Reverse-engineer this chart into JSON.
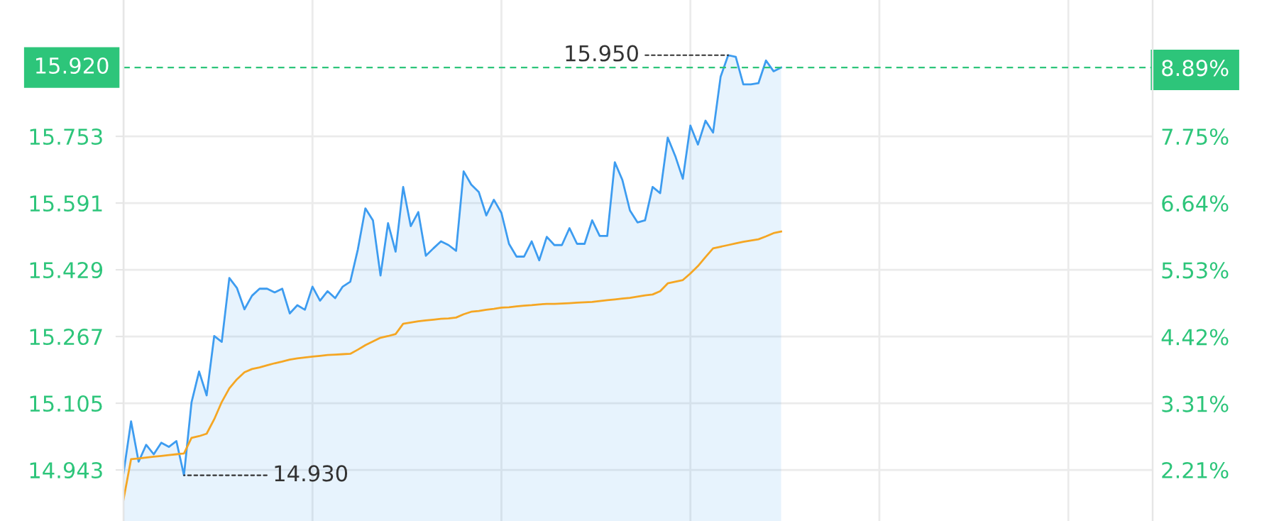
{
  "chart_data": {
    "type": "line",
    "categories": [
      null,
      null,
      null,
      null,
      null,
      null,
      null,
      null,
      null,
      null,
      null,
      null,
      null,
      null,
      null,
      null,
      null,
      null,
      null,
      null,
      null,
      null,
      null,
      null,
      null,
      null,
      null,
      null,
      null,
      null,
      null,
      null,
      null,
      null,
      null,
      null,
      null,
      null,
      null,
      null,
      null,
      null,
      null,
      null,
      null,
      null,
      null,
      null,
      null,
      null,
      null,
      null,
      null,
      null,
      null,
      null,
      null,
      null,
      null,
      null,
      null,
      null,
      null,
      null,
      null,
      null,
      null,
      null,
      null,
      null,
      null,
      null,
      null,
      null,
      null,
      null,
      null,
      null,
      null,
      null,
      null,
      null,
      null,
      null,
      null,
      null,
      null,
      null
    ],
    "ylim": [
      14.819,
      16.084
    ],
    "yticks": [
      14.943,
      15.105,
      15.267,
      15.429,
      15.591,
      15.753
    ],
    "y2lim": [
      1.361,
      10.014
    ],
    "y2ticks": [
      {
        "value": 2.21,
        "label": "2.21%"
      },
      {
        "value": 3.31,
        "label": "3.31%"
      },
      {
        "value": 4.42,
        "label": "4.42%"
      },
      {
        "value": 5.53,
        "label": "5.53%"
      },
      {
        "value": 6.64,
        "label": "6.64%"
      },
      {
        "value": 7.75,
        "label": "7.75%"
      },
      {
        "value": 8.89,
        "label": "8.89%"
      }
    ],
    "grid": true,
    "series": [
      {
        "type": "area",
        "color": "#3d9cf0",
        "values": [
          14.935,
          15.061,
          14.963,
          15.004,
          14.981,
          15.009,
          14.999,
          15.013,
          14.93,
          15.107,
          15.182,
          15.124,
          15.268,
          15.254,
          15.409,
          15.385,
          15.333,
          15.366,
          15.383,
          15.383,
          15.374,
          15.383,
          15.323,
          15.343,
          15.332,
          15.388,
          15.354,
          15.377,
          15.36,
          15.388,
          15.4,
          15.478,
          15.578,
          15.549,
          15.415,
          15.542,
          15.473,
          15.63,
          15.535,
          15.569,
          15.463,
          15.481,
          15.498,
          15.489,
          15.475,
          15.668,
          15.636,
          15.618,
          15.561,
          15.599,
          15.567,
          15.492,
          15.461,
          15.461,
          15.498,
          15.452,
          15.509,
          15.489,
          15.489,
          15.53,
          15.492,
          15.492,
          15.549,
          15.511,
          15.511,
          15.69,
          15.647,
          15.573,
          15.544,
          15.549,
          15.63,
          15.615,
          15.75,
          15.705,
          15.65,
          15.779,
          15.733,
          15.791,
          15.762,
          15.898,
          15.95,
          15.946,
          15.879,
          15.879,
          15.882,
          15.937,
          15.911,
          15.92
        ]
      },
      {
        "color": "#f5a623",
        "values": [
          14.871,
          14.969,
          14.971,
          14.973,
          14.975,
          14.977,
          14.979,
          14.981,
          14.983,
          15.021,
          15.025,
          15.031,
          15.066,
          15.108,
          15.141,
          15.163,
          15.18,
          15.188,
          15.192,
          15.197,
          15.202,
          15.206,
          15.211,
          15.214,
          15.216,
          15.218,
          15.22,
          15.222,
          15.223,
          15.224,
          15.225,
          15.235,
          15.246,
          15.255,
          15.264,
          15.268,
          15.273,
          15.298,
          15.301,
          15.304,
          15.306,
          15.308,
          15.31,
          15.311,
          15.313,
          15.321,
          15.327,
          15.329,
          15.332,
          15.334,
          15.337,
          15.338,
          15.34,
          15.342,
          15.343,
          15.345,
          15.346,
          15.346,
          15.347,
          15.348,
          15.349,
          15.35,
          15.351,
          15.353,
          15.355,
          15.357,
          15.359,
          15.361,
          15.364,
          15.367,
          15.369,
          15.377,
          15.396,
          15.4,
          15.404,
          15.42,
          15.438,
          15.46,
          15.481,
          15.485,
          15.489,
          15.493,
          15.497,
          15.5,
          15.503,
          15.51,
          15.518,
          15.522
        ]
      }
    ],
    "ref_lines": [
      {
        "axis": "y",
        "value": 15.92,
        "label": "15.920",
        "color": "#2dc57a",
        "line_style": "dashed"
      }
    ],
    "annotations": [
      "15.950",
      "14.930"
    ]
  }
}
